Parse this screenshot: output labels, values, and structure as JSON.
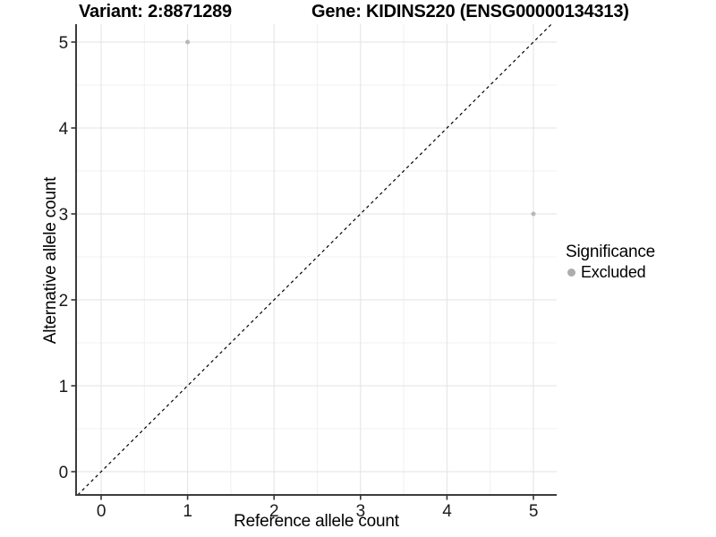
{
  "figure": {
    "title_left": "Variant: 2:8871289",
    "title_right": "Gene: KIDINS220 (ENSG00000134313)"
  },
  "chart_data": {
    "type": "scatter",
    "title": "Variant: 2:8871289   Gene: KIDINS220 (ENSG00000134313)",
    "xlabel": "Reference allele count",
    "ylabel": "Alternative allele count",
    "xlim": [
      -0.29,
      5.27
    ],
    "ylim": [
      -0.27,
      5.21
    ],
    "x_ticks": [
      0,
      1,
      2,
      3,
      4,
      5
    ],
    "y_ticks": [
      0,
      1,
      2,
      3,
      4,
      5
    ],
    "minor_ticks_x": [
      0.5,
      1.5,
      2.5,
      3.5,
      4.5
    ],
    "minor_ticks_y": [
      0.5,
      1.5,
      2.5,
      3.5,
      4.5
    ],
    "grid": true,
    "series": [
      {
        "name": "Excluded",
        "color": "#b8b8b8",
        "points": [
          {
            "x": 1,
            "y": 5
          },
          {
            "x": 5,
            "y": 3
          }
        ]
      }
    ],
    "reference_line": {
      "kind": "identity",
      "slope": 1,
      "intercept": 0,
      "style": "dashed",
      "color": "#000000"
    },
    "legend": {
      "title": "Significance",
      "position": "right",
      "entries": [
        {
          "label": "Excluded",
          "color": "#adadad",
          "marker": "circle"
        }
      ]
    }
  },
  "colors": {
    "background": "#ffffff",
    "grid_major": "#e3e3e3",
    "grid_minor": "#f0f0f0",
    "axis_line": "#3c3c3c",
    "tick_mark": "#333333",
    "tick_label": "#1a1a1a",
    "point": "#b8b8b8",
    "legend_point": "#adadad",
    "reference_line": "#000000"
  }
}
